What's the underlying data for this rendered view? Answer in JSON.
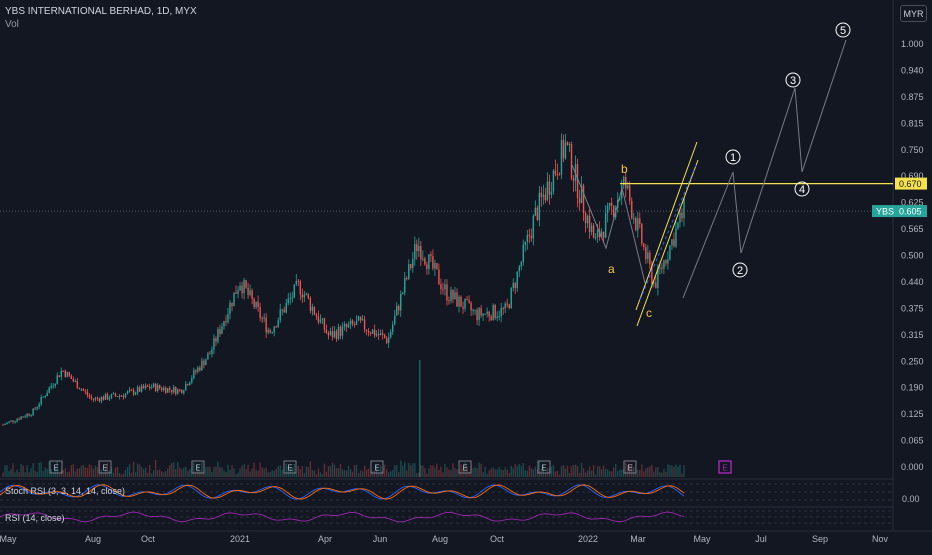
{
  "header": {
    "title": "YBS INTERNATIONAL BERHAD, 1D, MYX",
    "volume_label": "Vol",
    "currency": "MYR"
  },
  "colors": {
    "background": "#131722",
    "up": "#26a69a",
    "down": "#ef5350",
    "resistance_line": "#f5e14b",
    "price_tag": "#26a69a",
    "event_marker": "#787b86",
    "upcoming_event_marker": "#9c27b0",
    "stoch_k": "#2962ff",
    "stoch_d": "#ff6d00",
    "rsi": "#9c27b0",
    "wave_label": "#f5c242",
    "projection": "#787b86"
  },
  "price_axis": {
    "labels": [
      "1.000",
      "0.940",
      "0.875",
      "0.815",
      "0.750",
      "0.690",
      "0.625",
      "0.565",
      "0.500",
      "0.440",
      "0.375",
      "0.315",
      "0.250",
      "0.190",
      "0.125",
      "0.065",
      "0.000"
    ],
    "resistance_tag": "0.670",
    "symbol_tag": "YBS",
    "last_price_tag": "0.605"
  },
  "time_axis": {
    "labels": [
      "May",
      "Aug",
      "Oct",
      "2021",
      "Apr",
      "Jun",
      "Aug",
      "Oct",
      "2022",
      "Mar",
      "May",
      "Jul",
      "Sep",
      "Nov"
    ]
  },
  "indicators": {
    "stoch_label": "Stoch RSI (3, 3, 14, 14, close)",
    "stoch_axis_value": "0.00",
    "rsi_label": "RSI (14, close)"
  },
  "events": {
    "label": "E",
    "count_past": 8,
    "count_upcoming": 1
  },
  "wave_labels": {
    "corrective": [
      "a",
      "b",
      "c"
    ],
    "impulse": [
      "1",
      "2",
      "3",
      "4",
      "5"
    ]
  },
  "chart_data": {
    "type": "candlestick",
    "title": "YBS INTERNATIONAL BERHAD, 1D, MYX",
    "ylim": [
      0.0,
      1.0
    ],
    "x_ticks": [
      "May",
      "Aug",
      "Oct",
      "2021",
      "Apr",
      "Jun",
      "Aug",
      "Oct",
      "2022",
      "Mar",
      "May",
      "Jul",
      "Sep",
      "Nov"
    ],
    "series": [
      {
        "name": "YBS",
        "values": [
          {
            "t": "May",
            "close": 0.1
          },
          {
            "t": "Jul",
            "close": 0.13
          },
          {
            "t": "Aug",
            "close": 0.23
          },
          {
            "t": "Sep",
            "close": 0.16
          },
          {
            "t": "Oct",
            "close": 0.17
          },
          {
            "t": "Nov",
            "close": 0.19
          },
          {
            "t": "Dec",
            "close": 0.18
          },
          {
            "t": "2021",
            "close": 0.27
          },
          {
            "t": "Feb",
            "close": 0.44
          },
          {
            "t": "Mar",
            "close": 0.32
          },
          {
            "t": "Apr",
            "close": 0.43
          },
          {
            "t": "May",
            "close": 0.31
          },
          {
            "t": "Jun",
            "close": 0.34
          },
          {
            "t": "Jul",
            "close": 0.3
          },
          {
            "t": "Aug",
            "close": 0.53
          },
          {
            "t": "Sep",
            "close": 0.41
          },
          {
            "t": "Oct",
            "close": 0.36
          },
          {
            "t": "Nov",
            "close": 0.37
          },
          {
            "t": "Dec",
            "close": 0.6
          },
          {
            "t": "2022",
            "close": 0.76
          },
          {
            "t": "Jan",
            "close": 0.53
          },
          {
            "t": "Feb",
            "close": 0.67
          },
          {
            "t": "Mar",
            "close": 0.43
          },
          {
            "t": "Apr",
            "close": 0.605
          }
        ]
      }
    ],
    "resistance": 0.67,
    "last_price": 0.605
  }
}
